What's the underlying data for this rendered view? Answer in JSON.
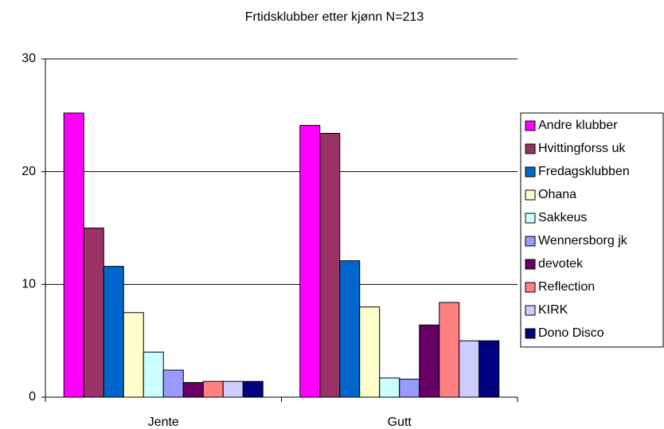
{
  "chart_data": {
    "type": "bar",
    "title": "Frtidsklubber etter kjønn N=213",
    "categories": [
      "Jente",
      "Gutt"
    ],
    "series": [
      {
        "name": "Andre klubber",
        "color": "#ff00ff",
        "values": [
          25.2,
          24.1
        ]
      },
      {
        "name": "Hvittingforss uk",
        "color": "#993366",
        "values": [
          15.0,
          23.4
        ]
      },
      {
        "name": "Fredagsklubben",
        "color": "#0066cc",
        "values": [
          11.6,
          12.1
        ]
      },
      {
        "name": "Ohana",
        "color": "#ffffcc",
        "values": [
          7.5,
          8.0
        ]
      },
      {
        "name": "Sakkeus",
        "color": "#ccffff",
        "values": [
          4.0,
          1.7
        ]
      },
      {
        "name": "Wennersborg jk",
        "color": "#9999ff",
        "values": [
          2.4,
          1.6
        ]
      },
      {
        "name": "devotek",
        "color": "#660066",
        "values": [
          1.3,
          6.4
        ]
      },
      {
        "name": "Reflection",
        "color": "#ff8080",
        "values": [
          1.4,
          8.4
        ]
      },
      {
        "name": "KIRK",
        "color": "#ccccff",
        "values": [
          1.4,
          5.0
        ]
      },
      {
        "name": "Dono Disco",
        "color": "#000080",
        "values": [
          1.4,
          5.0
        ]
      }
    ],
    "ylim": [
      0,
      30
    ],
    "yticks": [
      0,
      10,
      20,
      30
    ],
    "grid": true,
    "legend": "right"
  }
}
